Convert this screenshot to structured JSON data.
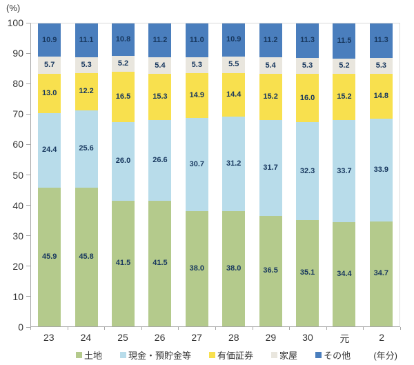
{
  "chart_data": {
    "type": "bar",
    "stacked": true,
    "percent_stacked": true,
    "title": "",
    "ylabel": "(%)",
    "x_unit": "(年分)",
    "ylim": [
      0,
      100
    ],
    "yticks": [
      0,
      10,
      20,
      30,
      40,
      50,
      60,
      70,
      80,
      90,
      100
    ],
    "grid": false,
    "legend_position": "bottom",
    "categories": [
      "23",
      "24",
      "25",
      "26",
      "27",
      "28",
      "29",
      "30",
      "元",
      "2"
    ],
    "series": [
      {
        "name": "土地",
        "color": "#b4ca8c",
        "values": [
          45.9,
          45.8,
          41.5,
          41.5,
          38.0,
          38.0,
          36.5,
          35.1,
          34.4,
          34.7
        ]
      },
      {
        "name": "現金・預貯金等",
        "color": "#b8dcea",
        "values": [
          24.4,
          25.6,
          26.0,
          26.6,
          30.7,
          31.2,
          31.7,
          32.3,
          33.7,
          33.9
        ]
      },
      {
        "name": "有価証券",
        "color": "#f8e04e",
        "values": [
          13.0,
          12.2,
          16.5,
          15.3,
          14.9,
          14.4,
          15.2,
          16.0,
          15.2,
          14.8
        ]
      },
      {
        "name": "家屋",
        "color": "#e9e6de",
        "values": [
          5.7,
          5.3,
          5.2,
          5.4,
          5.3,
          5.5,
          5.4,
          5.3,
          5.2,
          5.3
        ]
      },
      {
        "name": "その他",
        "color": "#4a7ebd",
        "values": [
          10.9,
          11.1,
          10.8,
          11.2,
          11.0,
          10.9,
          11.2,
          11.3,
          11.5,
          11.3
        ]
      }
    ],
    "colors": {
      "data_label": "#17375e",
      "axis_line": "#a6a6a6",
      "plot_border": "#d9d9d9",
      "tick_text": "#333333"
    }
  }
}
